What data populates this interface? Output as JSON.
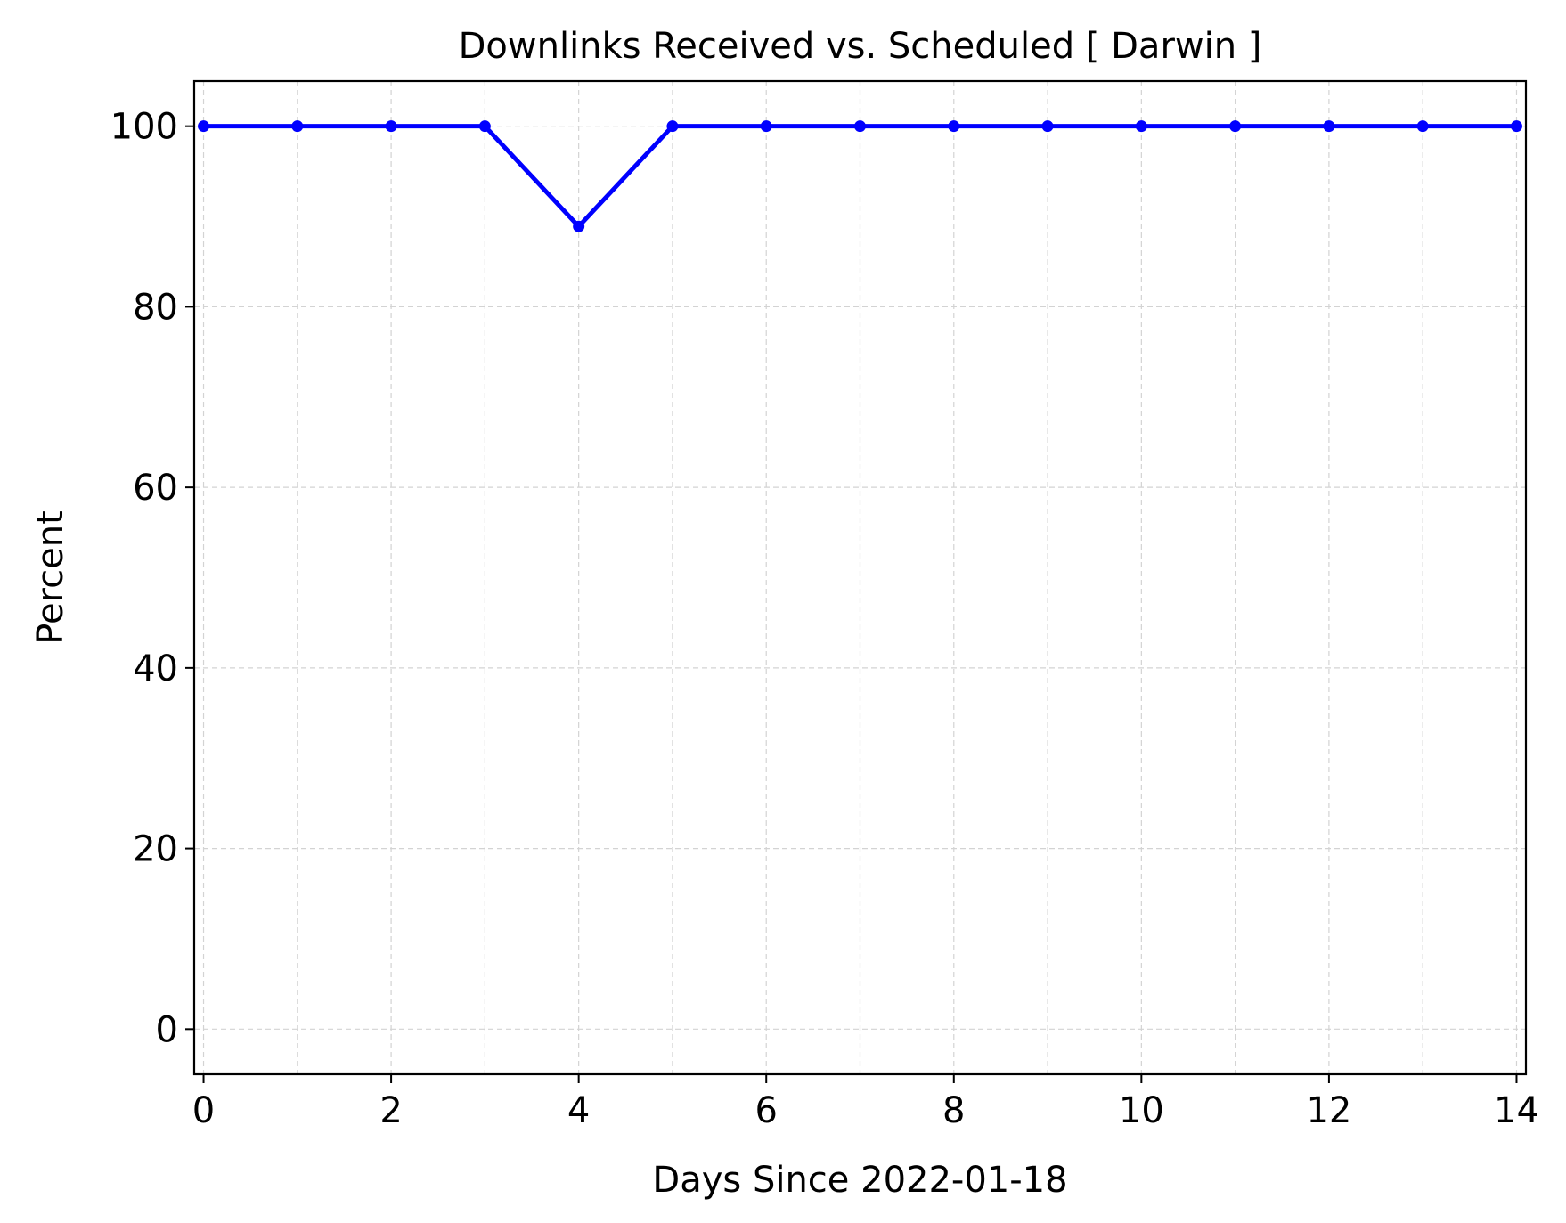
{
  "chart_data": {
    "type": "line",
    "title": "Downlinks Received vs. Scheduled [ Darwin ]",
    "xlabel": "Days Since 2022-01-18",
    "ylabel": "Percent",
    "xlim": [
      -0.1,
      14.1
    ],
    "ylim": [
      -5,
      105
    ],
    "xticks": [
      0,
      2,
      4,
      6,
      8,
      10,
      12,
      14
    ],
    "yticks": [
      0,
      20,
      40,
      60,
      80,
      100
    ],
    "xtick_labels": [
      "0",
      "2",
      "4",
      "6",
      "8",
      "10",
      "12",
      "14"
    ],
    "ytick_labels": [
      "0",
      "20",
      "40",
      "60",
      "80",
      "100"
    ],
    "xgrid": [
      0,
      1,
      2,
      3,
      4,
      5,
      6,
      7,
      8,
      9,
      10,
      11,
      12,
      13,
      14
    ],
    "grid": true,
    "series": [
      {
        "color": "#0000ff",
        "marker": "dot",
        "x": [
          0,
          1,
          2,
          3,
          4,
          5,
          6,
          7,
          8,
          9,
          10,
          11,
          12,
          13,
          14
        ],
        "y": [
          100,
          100,
          100,
          100,
          88.9,
          100,
          100,
          100,
          100,
          100,
          100,
          100,
          100,
          100,
          100
        ]
      }
    ]
  }
}
